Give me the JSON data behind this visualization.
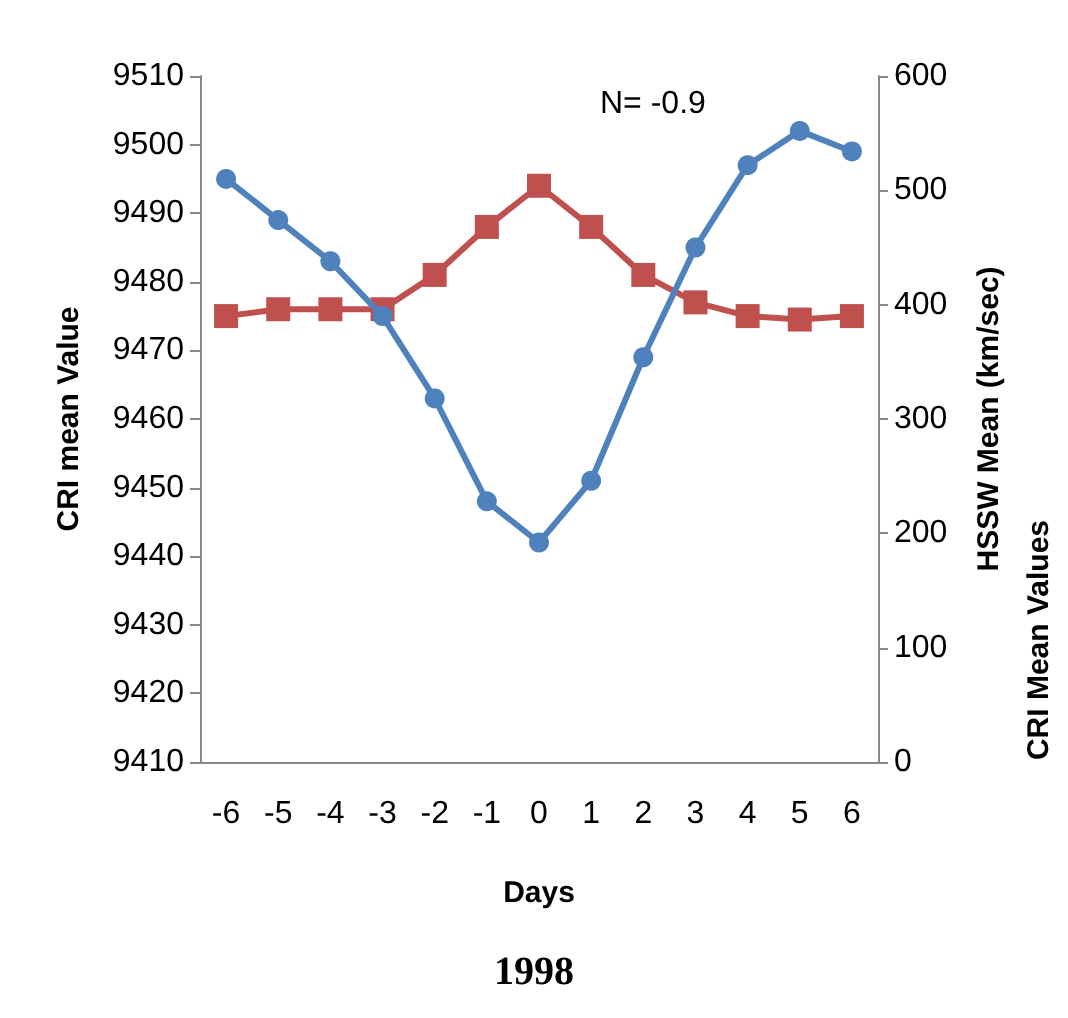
{
  "chart_data": {
    "type": "line",
    "title": "1998",
    "xlabel": "Days",
    "ylabel": "CRI mean Value",
    "y2label": "HSSW Mean (km/sec)",
    "annotations": [
      "N= -0.9",
      "CRI Mean Values"
    ],
    "categories": [
      "-6",
      "-5",
      "-4",
      "-3",
      "-2",
      "-1",
      "0",
      "1",
      "2",
      "3",
      "4",
      "5",
      "6"
    ],
    "series": [
      {
        "color": "#4f81bd",
        "marker": "circle",
        "values": [
          9495,
          9489,
          9483,
          9475,
          9463,
          9448,
          9442,
          9451,
          9469,
          9485,
          9497,
          9502,
          9499
        ]
      },
      {
        "color": "#c0504d",
        "marker": "square",
        "axis": "y2",
        "values": [
          390,
          396,
          396,
          396,
          426,
          468,
          504,
          468,
          426,
          402,
          390,
          387,
          390
        ]
      }
    ],
    "ylim": [
      9410,
      9510
    ],
    "yticks": [
      9410,
      9420,
      9430,
      9440,
      9450,
      9460,
      9470,
      9480,
      9490,
      9500,
      9510
    ],
    "y2lim": [
      0,
      600
    ],
    "y2ticks": [
      0,
      100,
      200,
      300,
      400,
      500,
      600
    ],
    "grid": false
  }
}
